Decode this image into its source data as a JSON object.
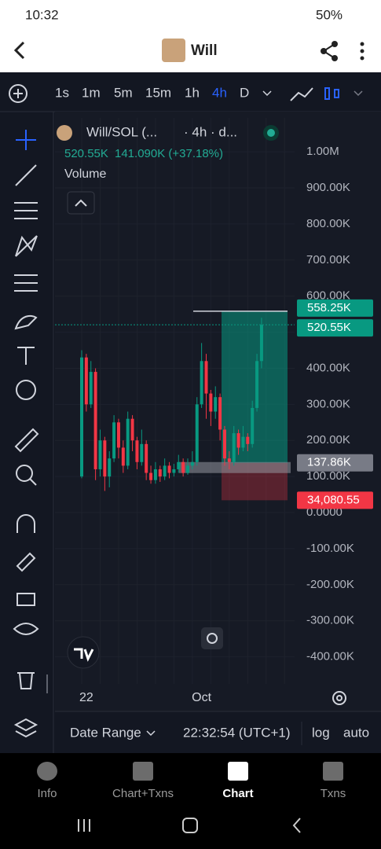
{
  "status_bar": {
    "time": "10:32",
    "battery": "50%"
  },
  "header": {
    "title": "Will"
  },
  "toolbar": {
    "intervals": [
      "1s",
      "1m",
      "5m",
      "15m",
      "1h",
      "4h",
      "D"
    ],
    "active_interval": 5
  },
  "chart_data": {
    "type": "candlestick",
    "title": "Will/SOL (...",
    "subtitle": "· 4h · d...",
    "last_price": "520.55K",
    "change": "141.090K (+37.18%)",
    "indicator": "Volume",
    "categories": [
      null,
      "22",
      null,
      null,
      null,
      null,
      null,
      null,
      null,
      null,
      null,
      null,
      null,
      null,
      null,
      null,
      null,
      null,
      null,
      null,
      null,
      null,
      null,
      null,
      null,
      null,
      "Oct",
      null,
      null,
      null,
      null,
      null,
      null,
      null,
      null,
      null,
      null,
      null,
      null,
      null
    ],
    "open": [
      100000,
      430000,
      300000,
      390000,
      120000,
      200000,
      100000,
      150000,
      250000,
      180000,
      130000,
      260000,
      200000,
      140000,
      190000,
      110000,
      90000,
      120000,
      100000,
      130000,
      110000,
      120000,
      140000,
      110000,
      130000,
      140000,
      300000,
      420000,
      330000,
      280000,
      320000,
      230000,
      150000,
      140000,
      220000,
      180000,
      210000,
      190000,
      290000,
      420000
    ],
    "high": [
      450000,
      440000,
      420000,
      400000,
      230000,
      210000,
      170000,
      270000,
      260000,
      200000,
      280000,
      270000,
      210000,
      230000,
      200000,
      130000,
      140000,
      130000,
      150000,
      140000,
      135000,
      160000,
      150000,
      150000,
      170000,
      320000,
      470000,
      440000,
      340000,
      350000,
      330000,
      240000,
      170000,
      240000,
      230000,
      240000,
      220000,
      310000,
      440000,
      540000
    ],
    "low": [
      95000,
      280000,
      290000,
      90000,
      100000,
      60000,
      70000,
      140000,
      150000,
      110000,
      120000,
      170000,
      120000,
      130000,
      90000,
      80000,
      80000,
      85000,
      90000,
      95000,
      100000,
      110000,
      100000,
      105000,
      120000,
      130000,
      290000,
      260000,
      240000,
      260000,
      200000,
      130000,
      120000,
      130000,
      160000,
      170000,
      170000,
      180000,
      280000,
      400000
    ],
    "close": [
      430000,
      300000,
      390000,
      120000,
      200000,
      100000,
      150000,
      250000,
      180000,
      130000,
      260000,
      200000,
      140000,
      190000,
      110000,
      90000,
      120000,
      100000,
      130000,
      110000,
      120000,
      140000,
      110000,
      130000,
      140000,
      300000,
      420000,
      330000,
      280000,
      320000,
      230000,
      150000,
      140000,
      220000,
      180000,
      210000,
      190000,
      290000,
      420000,
      520550
    ],
    "up_color": "#089981",
    "down_color": "#f23645",
    "ylim": [
      -475000,
      1094000
    ],
    "yticks": [
      {
        "value": 1000000,
        "label": "1.00M"
      },
      {
        "value": 900000,
        "label": "900.00K"
      },
      {
        "value": 800000,
        "label": "800.00K"
      },
      {
        "value": 700000,
        "label": "700.00K"
      },
      {
        "value": 600000,
        "label": "600.00K"
      },
      {
        "value": 500000,
        "label": "500.00K"
      },
      {
        "value": 400000,
        "label": "400.00K"
      },
      {
        "value": 300000,
        "label": "300.00K"
      },
      {
        "value": 200000,
        "label": "200.00K"
      },
      {
        "value": 100000,
        "label": "100.00K"
      },
      {
        "value": 0,
        "label": "0.0000"
      },
      {
        "value": -100000,
        "label": "-100.00K"
      },
      {
        "value": -200000,
        "label": "-200.00K"
      },
      {
        "value": -300000,
        "label": "-300.00K"
      },
      {
        "value": -400000,
        "label": "-400.00K"
      }
    ],
    "price_labels": [
      {
        "value": 558250,
        "label": "558.25K",
        "color": "#089981"
      },
      {
        "value": 520550,
        "label": "520.55K",
        "color": "#089981"
      },
      {
        "value": 137860,
        "label": "137.86K",
        "color": "#787b86"
      },
      {
        "value": 34080.55,
        "label": "34,080.55",
        "color": "#f23645"
      }
    ]
  },
  "bottom_bar": {
    "date_range": "Date Range",
    "time": "22:32:54 (UTC+1)",
    "log": "log",
    "auto": "auto"
  },
  "nav": {
    "items": [
      "Info",
      "Chart+Txns",
      "Chart",
      "Txns"
    ],
    "active": 2
  }
}
